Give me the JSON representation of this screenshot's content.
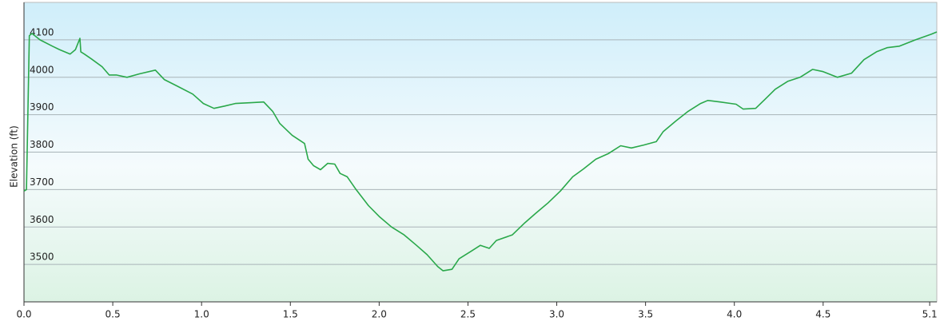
{
  "chart_data": {
    "type": "line",
    "y_label": "Elevation (ft)",
    "color": "#2aa84a",
    "grid": true,
    "x": [
      0,
      0.014,
      0.03,
      0.045,
      0.09,
      0.16,
      0.2,
      0.26,
      0.29,
      0.315,
      0.32,
      0.34,
      0.38,
      0.44,
      0.48,
      0.52,
      0.58,
      0.65,
      0.74,
      0.79,
      0.86,
      0.95,
      1.01,
      1.07,
      1.13,
      1.19,
      1.28,
      1.35,
      1.4,
      1.44,
      1.51,
      1.58,
      1.6,
      1.63,
      1.67,
      1.71,
      1.75,
      1.78,
      1.82,
      1.87,
      1.94,
      2.0,
      2.07,
      2.14,
      2.21,
      2.27,
      2.33,
      2.36,
      2.41,
      2.45,
      2.52,
      2.57,
      2.62,
      2.66,
      2.75,
      2.82,
      2.88,
      2.95,
      3.02,
      3.09,
      3.15,
      3.22,
      3.29,
      3.36,
      3.42,
      3.49,
      3.56,
      3.6,
      3.67,
      3.74,
      3.81,
      3.85,
      3.92,
      4.01,
      4.05,
      4.12,
      4.17,
      4.23,
      4.3,
      4.37,
      4.44,
      4.5,
      4.58,
      4.66,
      4.73,
      4.8,
      4.86,
      4.93,
      5.02,
      5.11,
      5.14
    ],
    "values": [
      3696,
      3700,
      4111,
      4117,
      4100,
      4083,
      4074,
      4062,
      4074,
      4104,
      4068,
      4062,
      4049,
      4028,
      4006,
      4006,
      4000,
      4009,
      4019,
      3994,
      3977,
      3955,
      3930,
      3917,
      3923,
      3930,
      3932,
      3934,
      3909,
      3877,
      3845,
      3823,
      3781,
      3764,
      3753,
      3770,
      3768,
      3743,
      3734,
      3700,
      3657,
      3628,
      3600,
      3579,
      3551,
      3526,
      3494,
      3483,
      3487,
      3515,
      3536,
      3551,
      3543,
      3564,
      3579,
      3611,
      3636,
      3664,
      3696,
      3734,
      3755,
      3781,
      3796,
      3817,
      3811,
      3819,
      3828,
      3855,
      3883,
      3909,
      3930,
      3938,
      3934,
      3928,
      3915,
      3917,
      3940,
      3968,
      3989,
      4000,
      4021,
      4015,
      4000,
      4011,
      4047,
      4068,
      4079,
      4083,
      4100,
      4115,
      4121
    ],
    "xlim": [
      0,
      5.14
    ],
    "ylim": [
      3400,
      4200
    ],
    "xticks": [
      {
        "value": 0,
        "label": "0.0"
      },
      0.5,
      {
        "value": 1,
        "label": "1.0"
      },
      1.5,
      {
        "value": 2,
        "label": "2.0"
      },
      2.5,
      {
        "value": 3,
        "label": "3.0"
      },
      3.5,
      {
        "value": 4,
        "label": "4.0"
      },
      4.5,
      5.1
    ],
    "yticks": [
      3500,
      3600,
      3700,
      3800,
      3900,
      4000,
      4100
    ]
  }
}
